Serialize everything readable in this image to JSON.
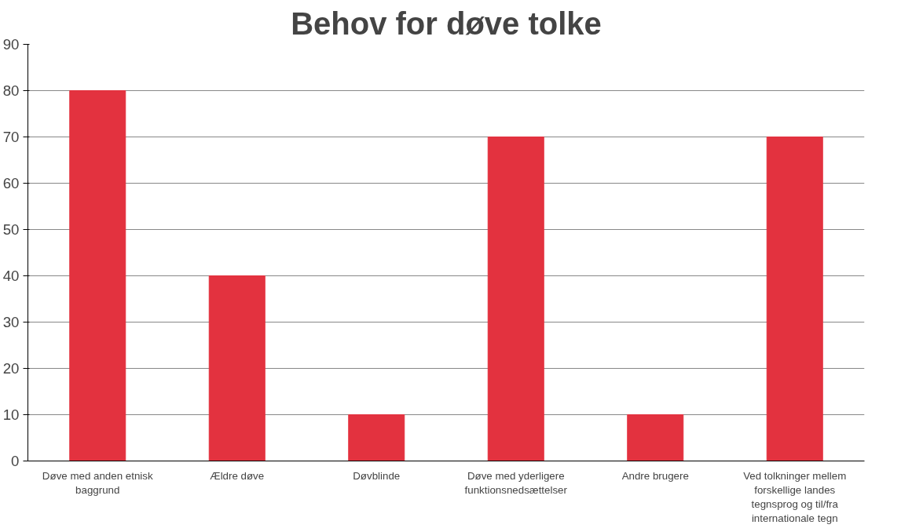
{
  "chart_data": {
    "type": "bar",
    "title": "Behov for døve tolke",
    "categories": [
      "Døve med anden etnisk baggrund",
      "Ældre døve",
      "Døvblinde",
      "Døve med yderligere funktionsnedsættelser",
      "Andre brugere",
      "Ved tolkninger mellem forskellige landes tegnsprog og til/fra internationale tegn"
    ],
    "values": [
      80,
      40,
      10,
      70,
      10,
      70
    ],
    "color": "#e3323f",
    "ylim": [
      0,
      90
    ],
    "yticks": [
      0,
      10,
      20,
      30,
      40,
      50,
      60,
      70,
      80,
      90
    ],
    "grid": "y"
  }
}
